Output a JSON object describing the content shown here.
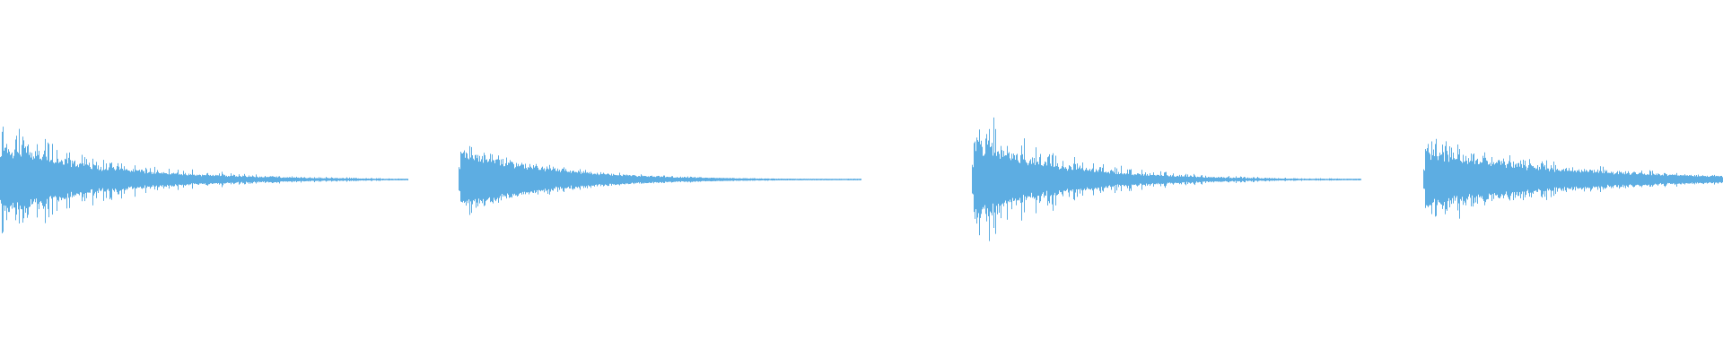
{
  "chart_data": {
    "type": "waveform",
    "title": "",
    "xlabel": "",
    "ylabel": "",
    "ylim": [
      -1,
      1
    ],
    "grid": false,
    "color": "#5dade2",
    "background": "#ffffff",
    "bursts": [
      {
        "start": 0.0,
        "end": 0.237,
        "peak": 0.3,
        "body": 0.2,
        "decay": 4.0
      },
      {
        "start": 0.266,
        "end": 0.5,
        "peak": 0.2,
        "body": 0.17,
        "decay": 4.5
      },
      {
        "start": 0.564,
        "end": 0.79,
        "peak": 0.36,
        "body": 0.22,
        "decay": 4.5
      },
      {
        "start": 0.826,
        "end": 1.0,
        "peak": 0.23,
        "body": 0.17,
        "decay": 2.2
      }
    ]
  }
}
